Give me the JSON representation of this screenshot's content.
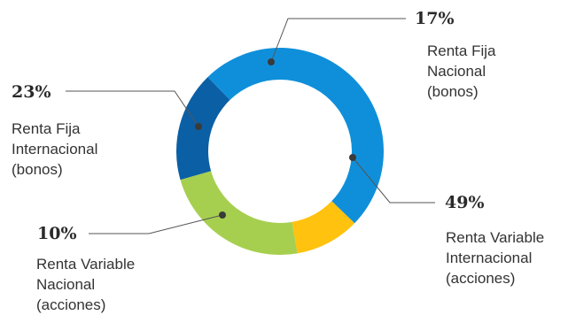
{
  "chart_data": {
    "type": "pie",
    "variant": "donut",
    "legend": "none",
    "slices": [
      {
        "name_lines": [
          "Renta Fija",
          "Nacional",
          "(bonos)"
        ],
        "pct_label": "17%",
        "value": 17,
        "color": "#0b5fa4"
      },
      {
        "name_lines": [
          "Renta Variable",
          "Internacional",
          "(acciones)"
        ],
        "pct_label": "49%",
        "value": 49,
        "color": "#0f8fda"
      },
      {
        "name_lines": [
          "Renta Variable",
          "Nacional",
          "(acciones)"
        ],
        "pct_label": "10%",
        "value": 10,
        "color": "#ffc20e"
      },
      {
        "name_lines": [
          "Renta Fija",
          "Internacional",
          "(bonos)"
        ],
        "pct_label": "23%",
        "value": 23,
        "color": "#a6cf4f"
      }
    ]
  }
}
